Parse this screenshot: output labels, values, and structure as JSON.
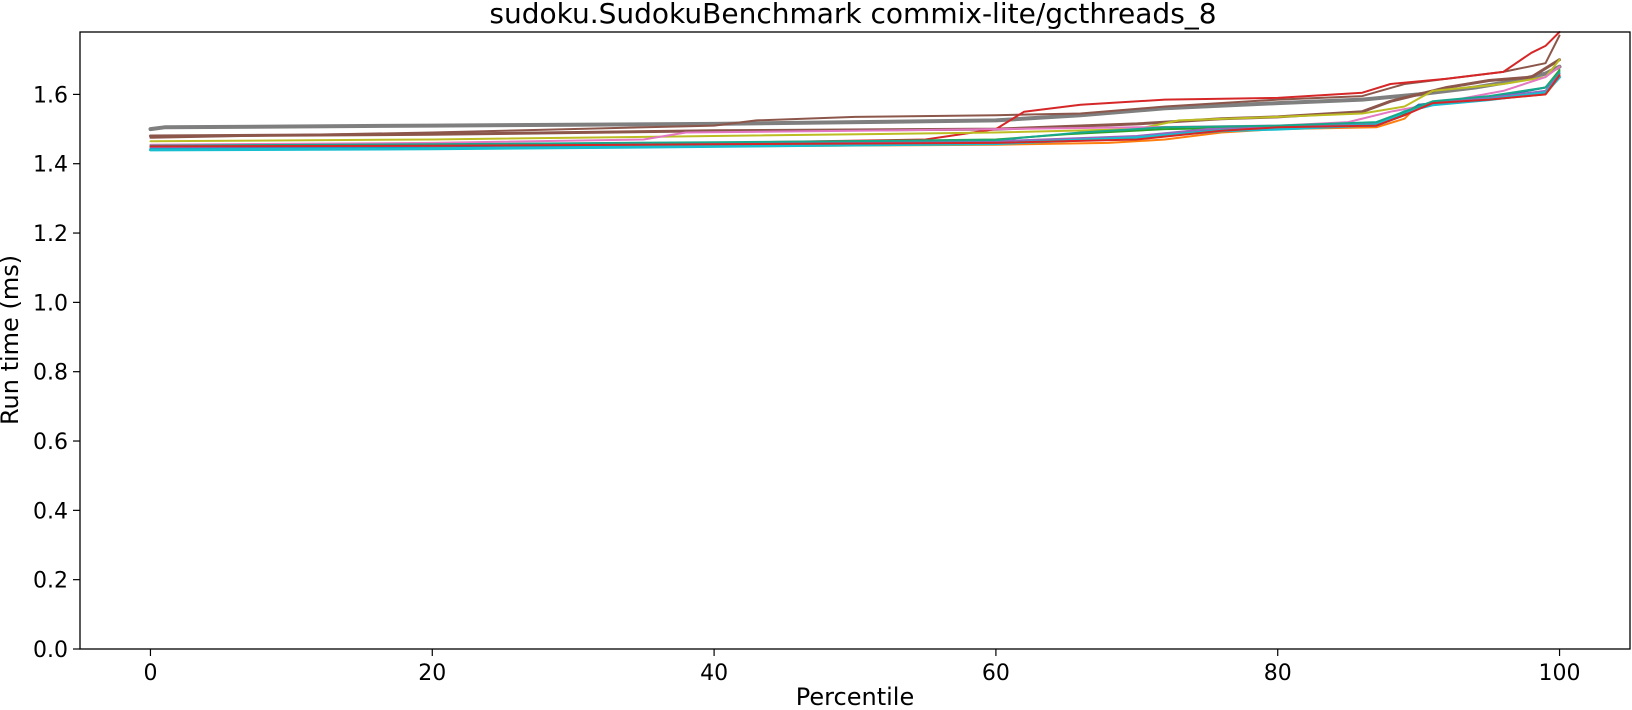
{
  "chart_data": {
    "type": "line",
    "title": "sudoku.SudokuBenchmark commix-lite/gcthreads_8",
    "xlabel": "Percentile",
    "ylabel": "Run time (ms)",
    "xlim": [
      -5,
      105
    ],
    "ylim": [
      0.0,
      1.78
    ],
    "x_ticks": [
      0,
      20,
      40,
      60,
      80,
      100
    ],
    "x_tick_labels": [
      "0",
      "20",
      "40",
      "60",
      "80",
      "100"
    ],
    "y_ticks": [
      0.0,
      0.2,
      0.4,
      0.6,
      0.8,
      1.0,
      1.2,
      1.4,
      1.6
    ],
    "y_tick_labels": [
      "0.0",
      "0.2",
      "0.4",
      "0.6",
      "0.8",
      "1.0",
      "1.2",
      "1.4",
      "1.6"
    ],
    "grid": false,
    "legend": "none",
    "series": [
      {
        "color": "#7f7f7f",
        "width": 4,
        "points": [
          [
            0,
            1.5
          ],
          [
            1,
            1.505
          ],
          [
            20,
            1.51
          ],
          [
            40,
            1.515
          ],
          [
            60,
            1.525
          ],
          [
            66,
            1.54
          ],
          [
            72,
            1.56
          ],
          [
            80,
            1.575
          ],
          [
            86,
            1.585
          ],
          [
            90,
            1.6
          ],
          [
            94,
            1.62
          ],
          [
            97,
            1.64
          ],
          [
            99,
            1.66
          ],
          [
            100,
            1.68
          ]
        ]
      },
      {
        "color": "#8c564b",
        "width": 2,
        "points": [
          [
            0,
            1.475
          ],
          [
            20,
            1.49
          ],
          [
            40,
            1.51
          ],
          [
            43,
            1.525
          ],
          [
            50,
            1.535
          ],
          [
            60,
            1.54
          ],
          [
            66,
            1.545
          ],
          [
            72,
            1.565
          ],
          [
            80,
            1.585
          ],
          [
            86,
            1.595
          ],
          [
            89,
            1.63
          ],
          [
            92,
            1.645
          ],
          [
            96,
            1.665
          ],
          [
            99,
            1.69
          ],
          [
            100,
            1.77
          ]
        ]
      },
      {
        "color": "#8c564b",
        "width": 3,
        "points": [
          [
            0,
            1.48
          ],
          [
            20,
            1.485
          ],
          [
            40,
            1.495
          ],
          [
            60,
            1.5
          ],
          [
            70,
            1.515
          ],
          [
            76,
            1.53
          ],
          [
            80,
            1.535
          ],
          [
            86,
            1.55
          ],
          [
            88,
            1.58
          ],
          [
            92,
            1.62
          ],
          [
            95,
            1.64
          ],
          [
            98,
            1.65
          ],
          [
            100,
            1.7
          ]
        ]
      },
      {
        "color": "#d62728",
        "width": 2,
        "points": [
          [
            0,
            1.45
          ],
          [
            20,
            1.455
          ],
          [
            40,
            1.46
          ],
          [
            55,
            1.47
          ],
          [
            60,
            1.5
          ],
          [
            62,
            1.55
          ],
          [
            66,
            1.57
          ],
          [
            72,
            1.585
          ],
          [
            80,
            1.59
          ],
          [
            86,
            1.605
          ],
          [
            88,
            1.63
          ],
          [
            92,
            1.645
          ],
          [
            96,
            1.665
          ],
          [
            98,
            1.72
          ],
          [
            99,
            1.74
          ],
          [
            100,
            1.78
          ]
        ]
      },
      {
        "color": "#bcbd22",
        "width": 2,
        "points": [
          [
            0,
            1.465
          ],
          [
            20,
            1.47
          ],
          [
            40,
            1.48
          ],
          [
            60,
            1.49
          ],
          [
            70,
            1.5
          ],
          [
            73,
            1.525
          ],
          [
            80,
            1.535
          ],
          [
            86,
            1.545
          ],
          [
            89,
            1.565
          ],
          [
            91,
            1.61
          ],
          [
            96,
            1.63
          ],
          [
            99,
            1.65
          ],
          [
            100,
            1.7
          ]
        ]
      },
      {
        "color": "#e377c2",
        "width": 2,
        "points": [
          [
            0,
            1.455
          ],
          [
            20,
            1.46
          ],
          [
            35,
            1.47
          ],
          [
            38,
            1.49
          ],
          [
            50,
            1.495
          ],
          [
            60,
            1.5
          ],
          [
            70,
            1.505
          ],
          [
            80,
            1.51
          ],
          [
            85,
            1.52
          ],
          [
            88,
            1.55
          ],
          [
            92,
            1.58
          ],
          [
            96,
            1.61
          ],
          [
            99,
            1.65
          ],
          [
            100,
            1.68
          ]
        ]
      },
      {
        "color": "#2ca02c",
        "width": 2,
        "points": [
          [
            0,
            1.45
          ],
          [
            20,
            1.455
          ],
          [
            40,
            1.46
          ],
          [
            60,
            1.47
          ],
          [
            65,
            1.485
          ],
          [
            72,
            1.5
          ],
          [
            80,
            1.505
          ],
          [
            87,
            1.515
          ],
          [
            89,
            1.545
          ],
          [
            90,
            1.57
          ],
          [
            95,
            1.59
          ],
          [
            99,
            1.62
          ],
          [
            100,
            1.67
          ]
        ]
      },
      {
        "color": "#ff7f0e",
        "width": 2,
        "points": [
          [
            0,
            1.44
          ],
          [
            20,
            1.445
          ],
          [
            40,
            1.45
          ],
          [
            60,
            1.455
          ],
          [
            68,
            1.46
          ],
          [
            72,
            1.47
          ],
          [
            76,
            1.49
          ],
          [
            80,
            1.5
          ],
          [
            87,
            1.505
          ],
          [
            89,
            1.53
          ],
          [
            90,
            1.57
          ],
          [
            95,
            1.585
          ],
          [
            99,
            1.6
          ],
          [
            100,
            1.65
          ]
        ]
      },
      {
        "color": "#1f77b4",
        "width": 2,
        "points": [
          [
            0,
            1.445
          ],
          [
            20,
            1.45
          ],
          [
            40,
            1.455
          ],
          [
            60,
            1.46
          ],
          [
            68,
            1.47
          ],
          [
            74,
            1.495
          ],
          [
            80,
            1.505
          ],
          [
            87,
            1.51
          ],
          [
            89,
            1.54
          ],
          [
            90,
            1.57
          ],
          [
            95,
            1.59
          ],
          [
            99,
            1.62
          ],
          [
            100,
            1.66
          ]
        ]
      },
      {
        "color": "#9467bd",
        "width": 2,
        "points": [
          [
            0,
            1.448
          ],
          [
            20,
            1.452
          ],
          [
            40,
            1.458
          ],
          [
            60,
            1.465
          ],
          [
            70,
            1.48
          ],
          [
            75,
            1.5
          ],
          [
            80,
            1.505
          ],
          [
            87,
            1.515
          ],
          [
            89,
            1.55
          ],
          [
            91,
            1.575
          ],
          [
            95,
            1.59
          ],
          [
            99,
            1.61
          ],
          [
            100,
            1.66
          ]
        ]
      },
      {
        "color": "#17becf",
        "width": 3,
        "points": [
          [
            0,
            1.44
          ],
          [
            20,
            1.443
          ],
          [
            40,
            1.45
          ],
          [
            60,
            1.458
          ],
          [
            70,
            1.475
          ],
          [
            76,
            1.495
          ],
          [
            80,
            1.5
          ],
          [
            87,
            1.512
          ],
          [
            89,
            1.55
          ],
          [
            91,
            1.57
          ],
          [
            95,
            1.585
          ],
          [
            99,
            1.605
          ],
          [
            100,
            1.65
          ]
        ]
      },
      {
        "color": "#17a88c",
        "width": 2,
        "points": [
          [
            0,
            1.452
          ],
          [
            20,
            1.456
          ],
          [
            40,
            1.462
          ],
          [
            60,
            1.468
          ],
          [
            66,
            1.49
          ],
          [
            72,
            1.505
          ],
          [
            80,
            1.51
          ],
          [
            87,
            1.52
          ],
          [
            89,
            1.55
          ],
          [
            91,
            1.58
          ],
          [
            95,
            1.595
          ],
          [
            99,
            1.62
          ],
          [
            100,
            1.665
          ]
        ]
      },
      {
        "color": "#d62728",
        "width": 2,
        "points": [
          [
            0,
            1.45
          ],
          [
            20,
            1.452
          ],
          [
            40,
            1.456
          ],
          [
            60,
            1.46
          ],
          [
            70,
            1.47
          ],
          [
            76,
            1.495
          ],
          [
            80,
            1.505
          ],
          [
            87,
            1.51
          ],
          [
            89,
            1.54
          ],
          [
            91,
            1.575
          ],
          [
            95,
            1.585
          ],
          [
            99,
            1.6
          ],
          [
            100,
            1.655
          ]
        ]
      }
    ]
  }
}
